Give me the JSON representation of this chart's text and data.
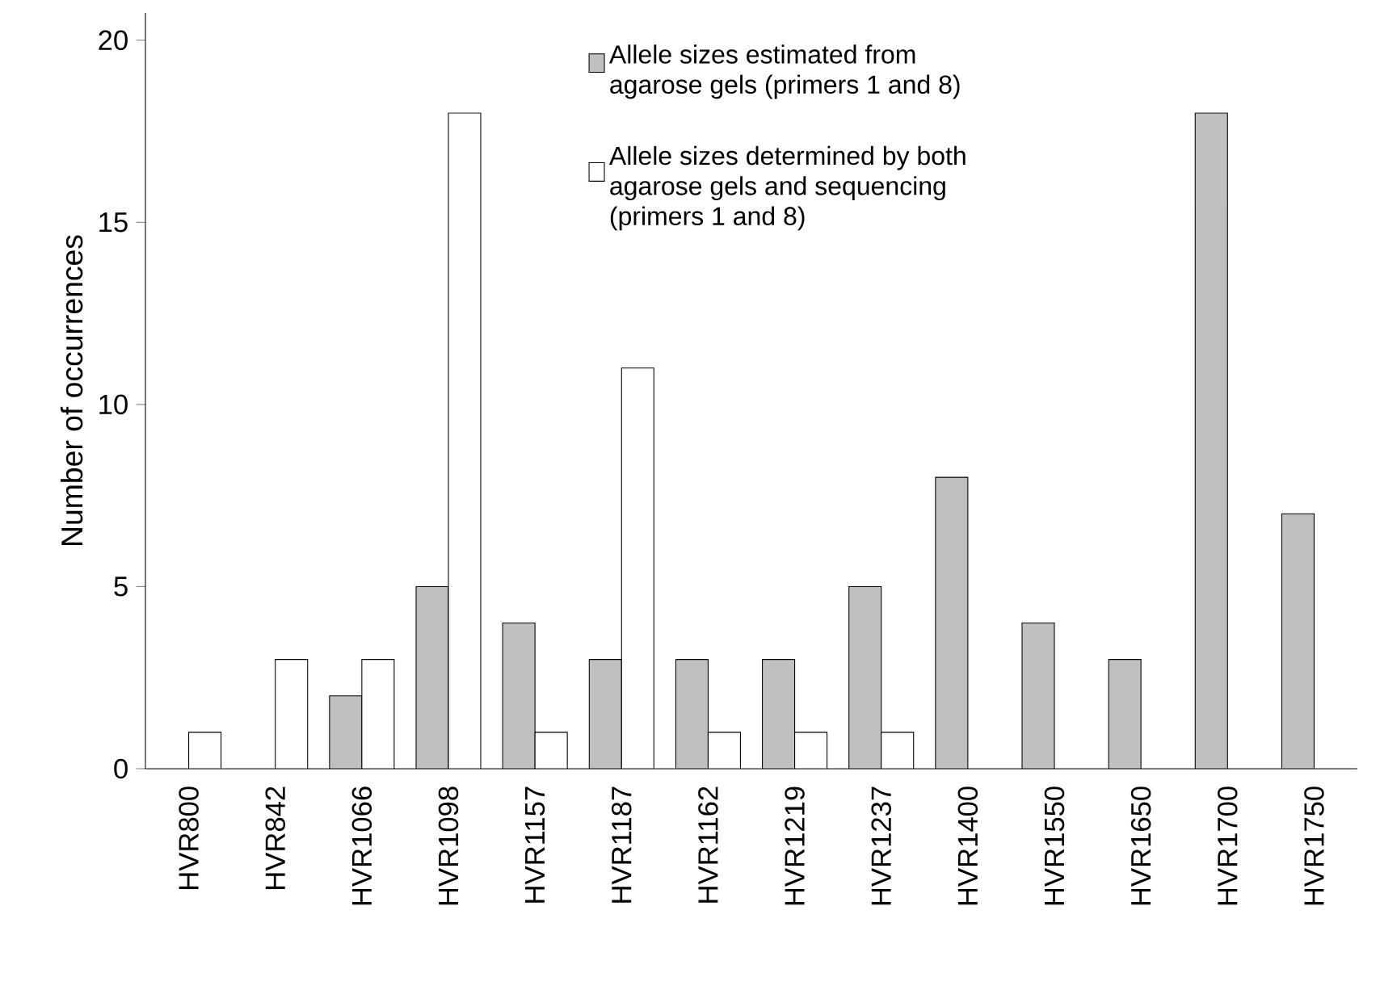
{
  "chart_data": {
    "type": "bar",
    "ylabel": "Number of occurrences",
    "categories": [
      "HVR800",
      "HVR842",
      "HVR1066",
      "HVR1098",
      "HVR1157",
      "HVR1187",
      "HVR1162",
      "HVR1219",
      "HVR1237",
      "HVR1400",
      "HVR1550",
      "HVR1650",
      "HVR1700",
      "HVR1750"
    ],
    "series": [
      {
        "name": "Allele sizes estimated from agarose gels (primers 1 and 8)",
        "color": "#c0c0c0",
        "values": [
          null,
          null,
          2,
          5,
          4,
          3,
          3,
          3,
          5,
          8,
          4,
          3,
          18,
          7
        ]
      },
      {
        "name": "Allele sizes determined by both agarose gels and sequencing (primers 1 and 8)",
        "color": "#ffffff",
        "values": [
          1,
          3,
          3,
          18,
          1,
          11,
          1,
          1,
          1,
          null,
          null,
          null,
          null,
          null
        ]
      }
    ],
    "ylim": [
      0,
      20.75
    ],
    "yticks": [
      0,
      5,
      10,
      15,
      20
    ],
    "grid": false,
    "legend": "top right"
  }
}
